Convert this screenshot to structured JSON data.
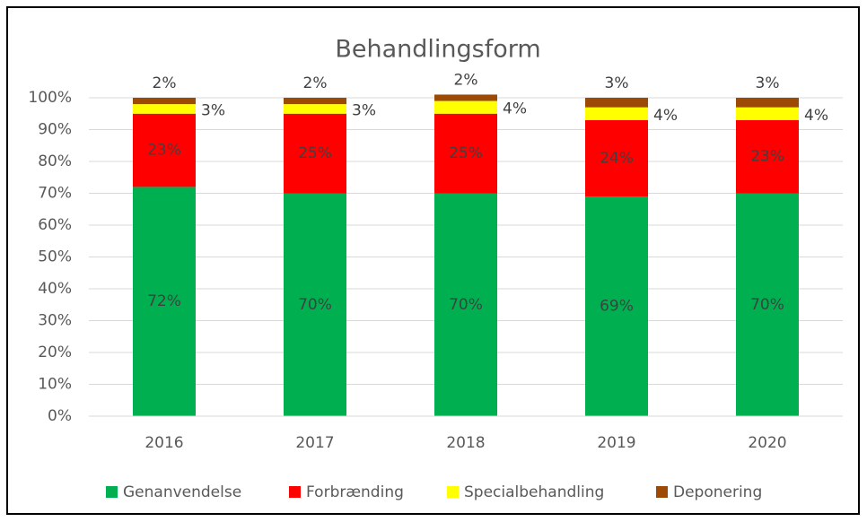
{
  "chart_data": {
    "type": "stacked_bar",
    "title": "Behandlingsform",
    "categories": [
      "2016",
      "2017",
      "2018",
      "2019",
      "2020"
    ],
    "series": [
      {
        "name": "Genanvendelse",
        "color": "#00b050",
        "values": [
          72,
          70,
          70,
          69,
          70
        ],
        "value_labels": [
          "72%",
          "70%",
          "70%",
          "69%",
          "70%"
        ]
      },
      {
        "name": "Forbrænding",
        "color": "#ff0000",
        "values": [
          23,
          25,
          25,
          24,
          23
        ],
        "value_labels": [
          "23%",
          "25%",
          "25%",
          "24%",
          "23%"
        ]
      },
      {
        "name": "Specialbehandling",
        "color": "#ffff00",
        "values": [
          3,
          3,
          4,
          4,
          4
        ],
        "value_labels": [
          "3%",
          "3%",
          "4%",
          "4%",
          "4%"
        ]
      },
      {
        "name": "Deponering",
        "color": "#9c4a06",
        "values": [
          2,
          2,
          2,
          3,
          3
        ],
        "value_labels": [
          "2%",
          "2%",
          "2%",
          "3%",
          "3%"
        ]
      }
    ],
    "ylim": [
      0,
      100
    ],
    "yticks": [
      {
        "value": 0,
        "label": "0%"
      },
      {
        "value": 10,
        "label": "10%"
      },
      {
        "value": 20,
        "label": "20%"
      },
      {
        "value": 30,
        "label": "30%"
      },
      {
        "value": 40,
        "label": "40%"
      },
      {
        "value": 50,
        "label": "50%"
      },
      {
        "value": 60,
        "label": "60%"
      },
      {
        "value": 70,
        "label": "70%"
      },
      {
        "value": 80,
        "label": "80%"
      },
      {
        "value": 90,
        "label": "90%"
      },
      {
        "value": 100,
        "label": "100%"
      }
    ],
    "grid": true,
    "legend": "bottom"
  }
}
